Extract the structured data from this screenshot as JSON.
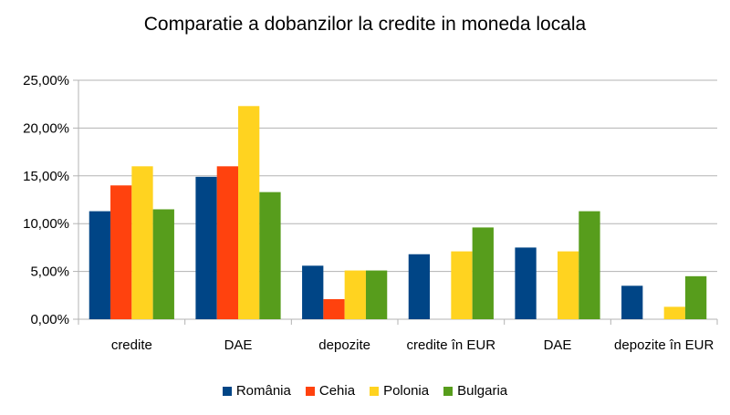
{
  "chart_data": {
    "type": "bar",
    "title": "Comparatie a dobanzilor la credite in moneda locala",
    "xlabel": "",
    "ylabel": "",
    "ylim": [
      0,
      25
    ],
    "yticks": [
      "0,00%",
      "5,00%",
      "10,00%",
      "15,00%",
      "20,00%",
      "25,00%"
    ],
    "grid": true,
    "legend_position": "bottom",
    "categories": [
      "credite",
      "DAE",
      "depozite",
      "credite în EUR",
      "DAE",
      "depozite în EUR"
    ],
    "series": [
      {
        "name": "România",
        "color": "#004586",
        "values": [
          11.3,
          14.9,
          5.6,
          6.8,
          7.5,
          3.5
        ]
      },
      {
        "name": "Cehia",
        "color": "#ff420e",
        "values": [
          14.0,
          16.0,
          2.1,
          null,
          null,
          null
        ]
      },
      {
        "name": "Polonia",
        "color": "#ffd320",
        "values": [
          16.0,
          22.3,
          5.1,
          7.1,
          7.1,
          1.3
        ]
      },
      {
        "name": "Bulgaria",
        "color": "#579d1c",
        "values": [
          11.5,
          13.3,
          5.1,
          9.6,
          11.3,
          4.5
        ]
      }
    ]
  }
}
